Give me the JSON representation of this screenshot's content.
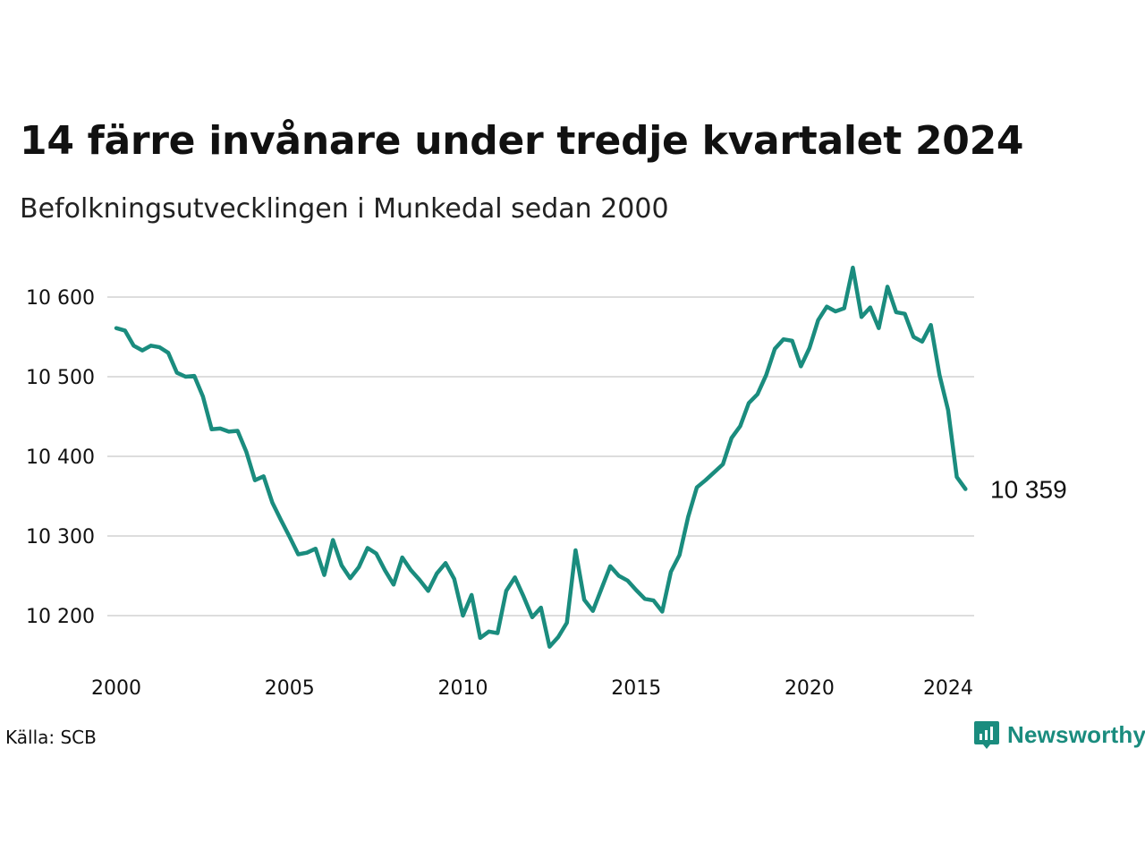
{
  "chart_data": {
    "type": "line",
    "title": "14 färre invånare under tredje kvartalet 2024",
    "subtitle": "Befolkningsutvecklingen i Munkedal sedan 2000",
    "source": "Källa: SCB",
    "brand": "Newsworthy",
    "end_label": "10 359",
    "y_ticks": [
      10200,
      10300,
      10400,
      10500,
      10600
    ],
    "y_tick_labels": [
      "10 200",
      "10 300",
      "10 400",
      "10 500",
      "10 600"
    ],
    "x_ticks": [
      2000,
      2005,
      2010,
      2015,
      2020,
      2024
    ],
    "x_tick_labels": [
      "2000",
      "2005",
      "2010",
      "2015",
      "2020",
      "2024"
    ],
    "ylim": [
      10150,
      10640
    ],
    "xlim": [
      2000,
      2024.75
    ],
    "grid": true,
    "line_color": "#1a8c7e",
    "series": [
      {
        "x_start": 2000.0,
        "x_step": 0.25,
        "values": [
          10561,
          10558,
          10539,
          10533,
          10539,
          10537,
          10530,
          10505,
          10500,
          10501,
          10475,
          10434,
          10435,
          10431,
          10432,
          10406,
          10370,
          10375,
          10342,
          10320,
          10299,
          10277,
          10279,
          10284,
          10251,
          10295,
          10263,
          10247,
          10261,
          10285,
          10278,
          10257,
          10239,
          10273,
          10257,
          10245,
          10231,
          10253,
          10266,
          10246,
          10200,
          10226,
          10172,
          10180,
          10178,
          10231,
          10248,
          10224,
          10198,
          10210,
          10161,
          10173,
          10191,
          10282,
          10220,
          10206,
          10234,
          10262,
          10250,
          10244,
          10232,
          10221,
          10219,
          10205,
          10255,
          10276,
          10324,
          10361,
          10370,
          10380,
          10390,
          10423,
          10438,
          10467,
          10478,
          10502,
          10535,
          10547,
          10545,
          10513,
          10536,
          10571,
          10588,
          10582,
          10586,
          10637,
          10575,
          10587,
          10561,
          10613,
          10581,
          10579,
          10550,
          10544,
          10565,
          10502,
          10458,
          10374,
          10359
        ]
      }
    ]
  }
}
